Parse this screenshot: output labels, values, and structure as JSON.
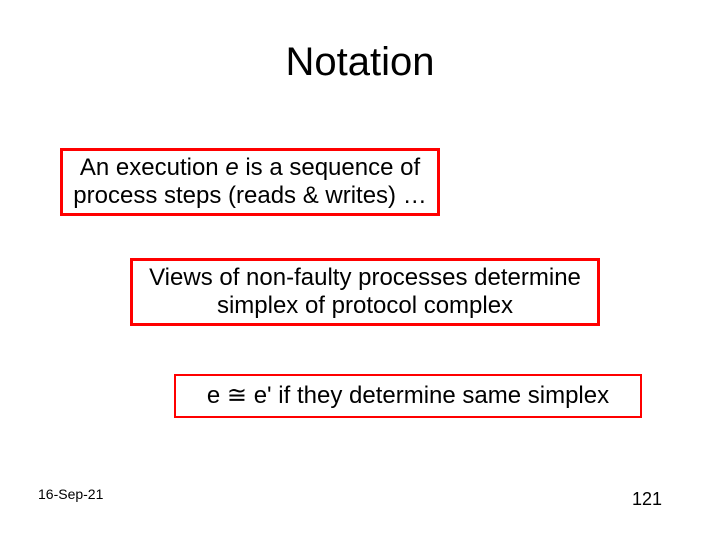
{
  "title": "Notation",
  "boxes": {
    "box1": {
      "pre": "An execution ",
      "var": "e",
      "post": " is a sequence of process steps (reads & writes) …",
      "border_color": "#ff0000"
    },
    "box2": {
      "text": "Views of non-faulty processes determine simplex of protocol complex",
      "border_color": "#ff0000"
    },
    "box3": {
      "lhs": "e ",
      "sym": "≅",
      "rhs": " e' if they determine same simplex",
      "border_color": "#ff0000"
    }
  },
  "footer": {
    "date": "16-Sep-21",
    "page": "121"
  },
  "colors": {
    "background": "#ffffff",
    "text": "#000000"
  },
  "typography": {
    "title_fontsize": 40,
    "body_fontsize": 24,
    "footer_date_fontsize": 14,
    "footer_page_fontsize": 18,
    "font_family": "Arial"
  }
}
